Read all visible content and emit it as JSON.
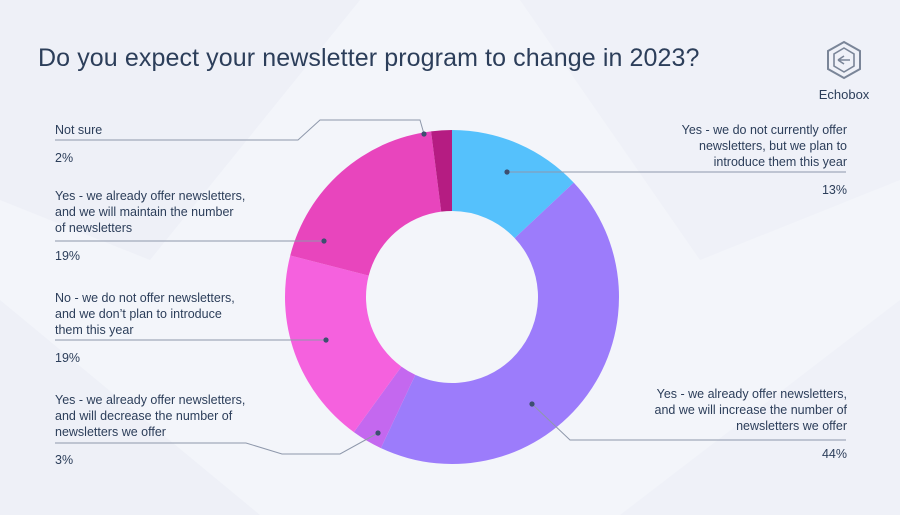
{
  "title": "Do you expect your newsletter program to change in 2023?",
  "brand": {
    "name": "Echobox"
  },
  "colors": {
    "background": "#f3f5fa",
    "text": "#2c3e5a",
    "leader_line": "#8e98ab"
  },
  "chart_data": {
    "type": "pie",
    "variant": "donut",
    "title": "Do you expect your newsletter program to change in 2023?",
    "series": [
      {
        "name": "Yes - we do not currently offer newsletters, but we plan to introduce them this year",
        "label": "Yes - we do not currently offer\nnewsletters, but we plan to\nintroduce them this year",
        "value": 13,
        "display": "13%",
        "color": "#55c1fc"
      },
      {
        "name": "Yes - we already offer newsletters, and we will increase the number of newsletters we offer",
        "label": "Yes - we already offer newsletters,\nand we will increase the number of\nnewsletters we offer",
        "value": 44,
        "display": "44%",
        "color": "#9c7cfb"
      },
      {
        "name": "Yes - we already offer newsletters, and will decrease the number of newsletters we offer",
        "label": "Yes - we already offer newsletters,\nand will decrease the number of\nnewsletters we offer",
        "value": 3,
        "display": "3%",
        "color": "#c468ef"
      },
      {
        "name": "No - we do not offer newsletters, and we don't plan to introduce them this year",
        "label": "No - we do not offer newsletters,\nand we don’t plan to introduce\nthem this year",
        "value": 19,
        "display": "19%",
        "color": "#f561de"
      },
      {
        "name": "Yes - we already offer newsletters, and we will maintain the number of newsletters",
        "label": "Yes - we already offer newsletters,\nand we will maintain the number\nof newsletters",
        "value": 19,
        "display": "19%",
        "color": "#e845bd"
      },
      {
        "name": "Not sure",
        "label": "Not sure",
        "value": 2,
        "display": "2%",
        "color": "#b51c82"
      }
    ],
    "legend": "none"
  }
}
